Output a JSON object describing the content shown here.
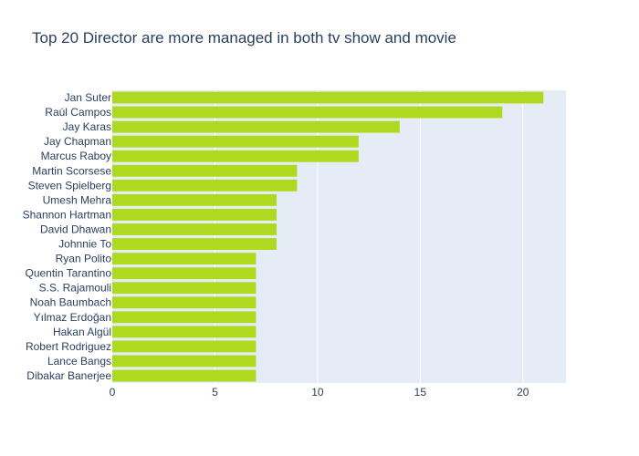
{
  "chart_data": {
    "type": "bar",
    "orientation": "horizontal",
    "title": "Top 20 Director are more managed in both tv show and movie",
    "xlabel": "",
    "ylabel": "",
    "xlim": [
      0,
      22.1
    ],
    "xticks": [
      0,
      5,
      10,
      15,
      20
    ],
    "grid": true,
    "legend": "none",
    "bar_color": "#add91f",
    "plot_bg_color": "#e5ecf6",
    "categories": [
      "Jan Suter",
      "Raúl Campos",
      "Jay Karas",
      "Jay Chapman",
      "Marcus Raboy",
      "Martin Scorsese",
      "Steven Spielberg",
      "Umesh Mehra",
      "Shannon Hartman",
      "David Dhawan",
      "Johnnie To",
      "Ryan Polito",
      "Quentin Tarantino",
      "S.S. Rajamouli",
      "Noah Baumbach",
      "Yılmaz Erdoğan",
      "Hakan Algül",
      "Robert Rodriguez",
      "Lance Bangs",
      "Dibakar Banerjee"
    ],
    "values": [
      21,
      19,
      14,
      12,
      12,
      9,
      9,
      8,
      8,
      8,
      8,
      7,
      7,
      7,
      7,
      7,
      7,
      7,
      7,
      7
    ]
  }
}
